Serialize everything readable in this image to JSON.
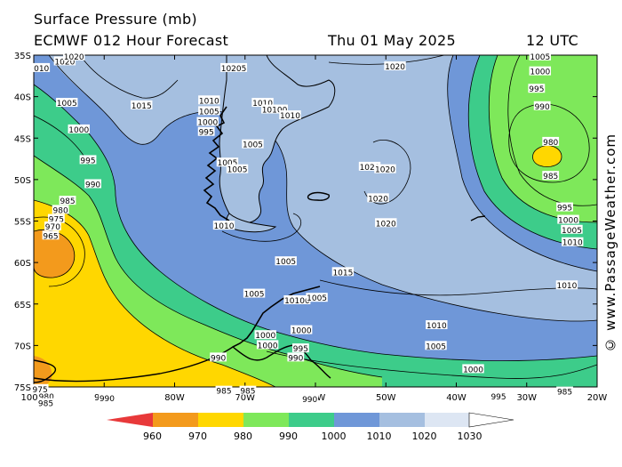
{
  "header": {
    "title": "Surface Pressure (mb)",
    "model": "ECMWF 012 Hour Forecast",
    "date": "Thu 01 May 2025",
    "time": "12 UTC"
  },
  "copyright": "© www.PassageWeather.com",
  "lat_labels": [
    "35S",
    "40S",
    "45S",
    "50S",
    "55S",
    "60S",
    "65S",
    "70S",
    "75S"
  ],
  "lon_labels": [
    "100W",
    "90W",
    "80W",
    "70W",
    "60W",
    "50W",
    "40W",
    "30W",
    "20W"
  ],
  "colorbar": {
    "labels": [
      "960",
      "970",
      "980",
      "990",
      "1000",
      "1010",
      "1020",
      "1030"
    ],
    "colors": [
      "#e8393a",
      "#f39a1c",
      "#ffd700",
      "#7ee85a",
      "#3dcc8a",
      "#6f97d8",
      "#a5bfe0",
      "#dde6f3",
      "#ffffff"
    ]
  },
  "isobar_labels": [
    {
      "text": "1020",
      "lon": -95.6,
      "lat": -35.8
    },
    {
      "text": "1020",
      "lon": -94.3,
      "lat": -35.2
    },
    {
      "text": "010",
      "lon": -98.9,
      "lat": -36.6
    },
    {
      "text": "10205",
      "lon": -71.6,
      "lat": -36.6
    },
    {
      "text": "1020",
      "lon": -48.7,
      "lat": -36.4
    },
    {
      "text": "1005",
      "lon": -28.1,
      "lat": -35.2
    },
    {
      "text": "1000",
      "lon": -28.1,
      "lat": -37.0
    },
    {
      "text": "995",
      "lon": -28.6,
      "lat": -39.1
    },
    {
      "text": "990",
      "lon": -27.8,
      "lat": -41.2
    },
    {
      "text": "980",
      "lon": -26.6,
      "lat": -45.5
    },
    {
      "text": "985",
      "lon": -26.6,
      "lat": -49.6
    },
    {
      "text": "995",
      "lon": -24.6,
      "lat": -53.4
    },
    {
      "text": "1000",
      "lon": -24.1,
      "lat": -54.9
    },
    {
      "text": "1005",
      "lon": -23.6,
      "lat": -56.1
    },
    {
      "text": "1010",
      "lon": -23.5,
      "lat": -57.6
    },
    {
      "text": "1010",
      "lon": -24.3,
      "lat": -62.8
    },
    {
      "text": "1005",
      "lon": -95.3,
      "lat": -40.8
    },
    {
      "text": "1000",
      "lon": -93.6,
      "lat": -44.0
    },
    {
      "text": "1015",
      "lon": -84.7,
      "lat": -41.1
    },
    {
      "text": "995",
      "lon": -92.3,
      "lat": -47.7
    },
    {
      "text": "990",
      "lon": -91.6,
      "lat": -50.6
    },
    {
      "text": "985",
      "lon": -95.2,
      "lat": -52.6
    },
    {
      "text": "980",
      "lon": -96.2,
      "lat": -53.7
    },
    {
      "text": "975",
      "lon": -96.8,
      "lat": -54.8
    },
    {
      "text": "970",
      "lon": -97.3,
      "lat": -55.7
    },
    {
      "text": "965",
      "lon": -97.6,
      "lat": -56.8
    },
    {
      "text": "1010",
      "lon": -75.1,
      "lat": -40.5
    },
    {
      "text": "1005",
      "lon": -75.1,
      "lat": -41.8
    },
    {
      "text": "1000",
      "lon": -75.3,
      "lat": -43.1
    },
    {
      "text": "995",
      "lon": -75.5,
      "lat": -44.3
    },
    {
      "text": "1010",
      "lon": -67.5,
      "lat": -40.8
    },
    {
      "text": "10100",
      "lon": -65.8,
      "lat": -41.6
    },
    {
      "text": "1010",
      "lon": -63.6,
      "lat": -42.3
    },
    {
      "text": "1005",
      "lon": -68.9,
      "lat": -45.8
    },
    {
      "text": "1005",
      "lon": -72.5,
      "lat": -48.0
    },
    {
      "text": "1005",
      "lon": -71.1,
      "lat": -48.8
    },
    {
      "text": "1020",
      "lon": -52.3,
      "lat": -48.5
    },
    {
      "text": "1020",
      "lon": -50.1,
      "lat": -48.8
    },
    {
      "text": "1020",
      "lon": -51.1,
      "lat": -52.3
    },
    {
      "text": "1020",
      "lon": -50.0,
      "lat": -55.3
    },
    {
      "text": "1010",
      "lon": -73.0,
      "lat": -55.6
    },
    {
      "text": "1005",
      "lon": -64.2,
      "lat": -59.9
    },
    {
      "text": "1015",
      "lon": -56.1,
      "lat": -61.2
    },
    {
      "text": "1005",
      "lon": -68.7,
      "lat": -63.8
    },
    {
      "text": "10100",
      "lon": -62.6,
      "lat": -64.6
    },
    {
      "text": "1005",
      "lon": -59.8,
      "lat": -64.3
    },
    {
      "text": "1010",
      "lon": -42.8,
      "lat": -67.6
    },
    {
      "text": "1005",
      "lon": -42.9,
      "lat": -70.1
    },
    {
      "text": "1000",
      "lon": -37.6,
      "lat": -72.9
    },
    {
      "text": "1000",
      "lon": -67.1,
      "lat": -68.8
    },
    {
      "text": "1000",
      "lon": -62.0,
      "lat": -68.2
    },
    {
      "text": "1000",
      "lon": -66.8,
      "lat": -70.0
    },
    {
      "text": "995",
      "lon": -62.1,
      "lat": -70.4
    },
    {
      "text": "990",
      "lon": -62.8,
      "lat": -71.5
    },
    {
      "text": "990",
      "lon": -73.8,
      "lat": -71.5
    },
    {
      "text": "985",
      "lon": -73.0,
      "lat": -75.5
    },
    {
      "text": "985",
      "lon": -69.6,
      "lat": -75.5
    },
    {
      "text": "990",
      "lon": -60.8,
      "lat": -76.5
    },
    {
      "text": "990",
      "lon": -89.6,
      "lat": -76.4
    },
    {
      "text": "995",
      "lon": -34.0,
      "lat": -76.2
    },
    {
      "text": "985",
      "lon": -24.6,
      "lat": -75.6
    },
    {
      "text": "980",
      "lon": -98.2,
      "lat": -76.2
    },
    {
      "text": "985",
      "lon": -98.3,
      "lat": -77.0
    },
    {
      "text": "975",
      "lon": -99.1,
      "lat": -75.3
    }
  ]
}
